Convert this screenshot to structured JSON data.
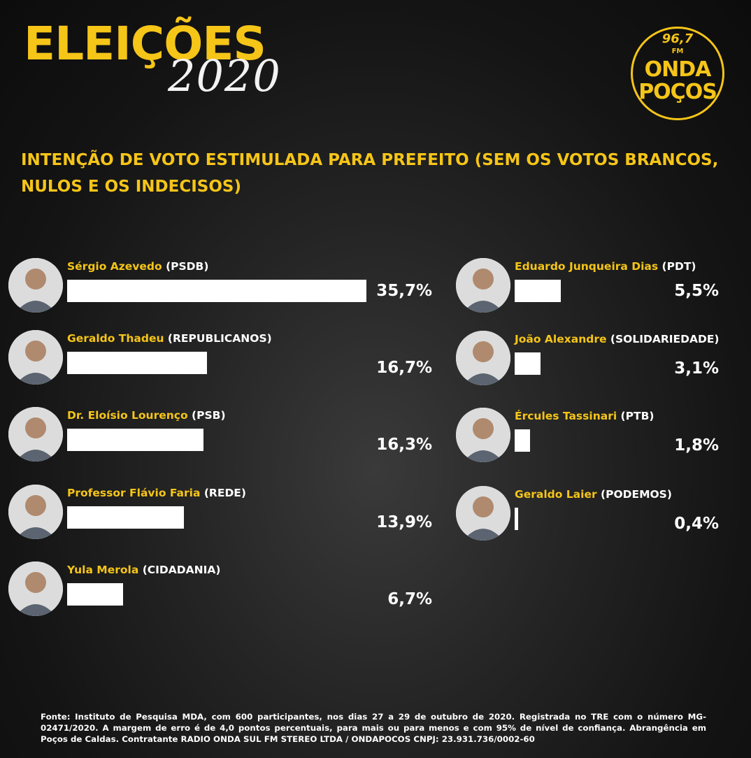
{
  "header": {
    "title": "ELEIÇÕES",
    "year": "2020"
  },
  "logo": {
    "frequency": "96,7",
    "band": "FM",
    "line1": "ONDA",
    "line2": "POÇOS"
  },
  "colors": {
    "accent": "#f5c518",
    "bar": "#ffffff",
    "background": "#121212"
  },
  "chart_data": {
    "type": "bar",
    "title": "INTENÇÃO DE VOTO ESTIMULADA PARA PREFEITO (SEM OS VOTOS BRANCOS, NULOS E OS INDECISOS)",
    "unit": "%",
    "candidates": [
      {
        "name": "Sérgio Azevedo",
        "party": "(PSDB)",
        "value": 35.7,
        "label": "35,7%"
      },
      {
        "name": "Geraldo Thadeu",
        "party": "(REPUBLICANOS)",
        "value": 16.7,
        "label": "16,7%"
      },
      {
        "name": "Dr. Eloísio Lourenço",
        "party": "(PSB)",
        "value": 16.3,
        "label": "16,3%"
      },
      {
        "name": "Professor Flávio Faria",
        "party": "(REDE)",
        "value": 13.9,
        "label": "13,9%"
      },
      {
        "name": "Yula Merola",
        "party": "(CIDADANIA)",
        "value": 6.7,
        "label": "6,7%"
      },
      {
        "name": "Eduardo Junqueira Dias",
        "party": "(PDT)",
        "value": 5.5,
        "label": "5,5%"
      },
      {
        "name": "João Alexandre",
        "party": "(SOLIDARIEDADE)",
        "value": 3.1,
        "label": "3,1%"
      },
      {
        "name": "Ércules Tassinari",
        "party": "(PTB)",
        "value": 1.8,
        "label": "1,8%"
      },
      {
        "name": "Geraldo Laier",
        "party": "(PODEMOS)",
        "value": 0.4,
        "label": "0,4%"
      }
    ]
  },
  "source": "Fonte: Instituto de Pesquisa MDA, com 600 participantes, nos dias 27 a 29 de outubro de 2020. Registrada no TRE com o número MG-02471/2020. A margem de erro é de 4,0 pontos percentuais, para mais ou para menos e com 95% de nível de confiança. Abrangência em Poços de Caldas. Contratante RADIO ONDA SUL FM STEREO LTDA / ONDAPOCOS CNPJ: 23.931.736/0002-60"
}
